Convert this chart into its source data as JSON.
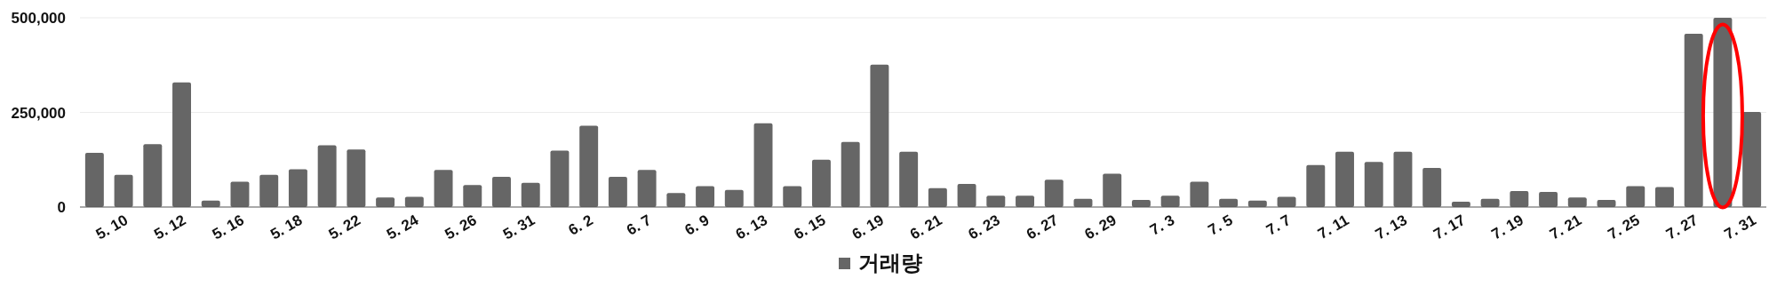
{
  "chart_data": {
    "type": "bar",
    "categories": [
      null,
      "5. 10",
      null,
      "5. 12",
      null,
      "5. 16",
      null,
      "5. 18",
      null,
      "5. 22",
      null,
      "5. 24",
      null,
      "5. 26",
      null,
      "5. 31",
      null,
      "6. 2",
      null,
      "6. 7",
      null,
      "6. 9",
      null,
      "6. 13",
      null,
      "6. 15",
      null,
      "6. 19",
      null,
      "6. 21",
      null,
      "6. 23",
      null,
      "6. 27",
      null,
      "6. 29",
      null,
      "7. 3",
      null,
      "7. 5",
      null,
      "7. 7",
      null,
      "7. 11",
      null,
      "7. 13",
      null,
      "7. 17",
      null,
      "7. 19",
      null,
      "7. 21",
      null,
      "7. 25",
      null,
      "7. 27",
      null,
      "7. 31"
    ],
    "series": [
      {
        "name": "거래량",
        "color": "#666666",
        "values": [
          143000,
          85000,
          166000,
          329000,
          17000,
          67000,
          85000,
          100000,
          163000,
          152000,
          25000,
          27000,
          98000,
          58000,
          80000,
          64000,
          149000,
          215000,
          80000,
          98000,
          37000,
          55000,
          45000,
          221000,
          55000,
          125000,
          172000,
          376000,
          146000,
          50000,
          61000,
          30000,
          30000,
          72000,
          22000,
          88000,
          19000,
          30000,
          67000,
          22000,
          17000,
          27000,
          111000,
          146000,
          119000,
          146000,
          103000,
          14000,
          22000,
          42000,
          40000,
          25000,
          19000,
          55000,
          53000,
          458000,
          500000,
          251000
        ]
      }
    ],
    "ylim": [
      0,
      500000
    ],
    "yticks": [
      {
        "value": 0,
        "label": "0"
      },
      {
        "value": 250000,
        "label": "250,000"
      },
      {
        "value": 500000,
        "label": "500,000"
      }
    ],
    "grid": "y",
    "legend": "bottom"
  }
}
